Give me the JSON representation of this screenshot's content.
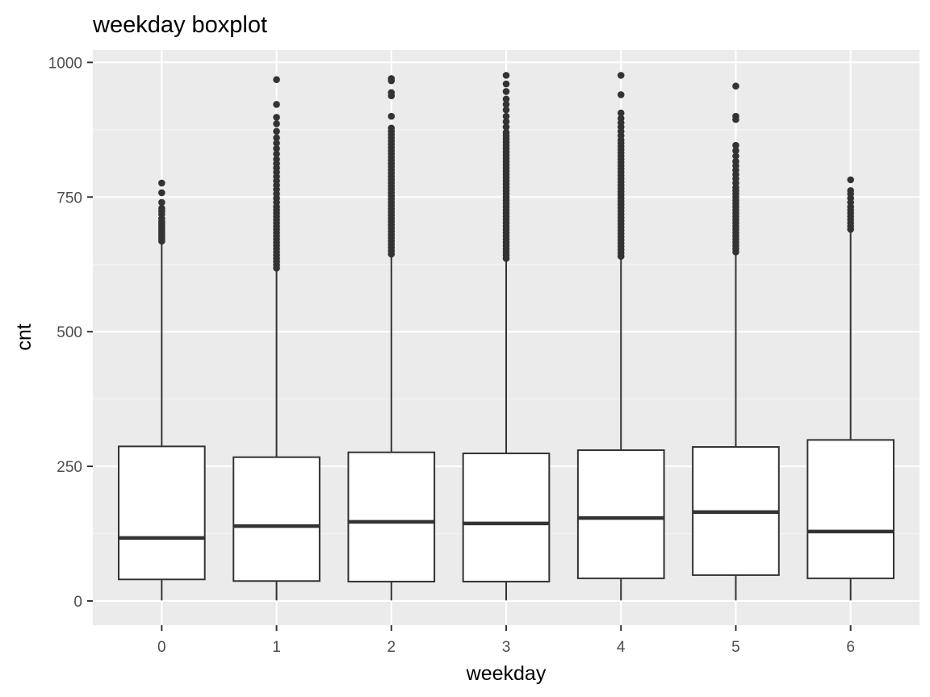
{
  "chart_data": {
    "type": "boxplot",
    "title": "weekday boxplot",
    "xlabel": "weekday",
    "ylabel": "cnt",
    "categories": [
      "0",
      "1",
      "2",
      "3",
      "4",
      "5",
      "6"
    ],
    "ylim": [
      -45,
      1023
    ],
    "yticks": [
      0,
      250,
      500,
      750,
      1000
    ],
    "ytick_labels": [
      "0",
      "250",
      "500",
      "750",
      "1000"
    ],
    "grid": true,
    "legend": "none",
    "colors": {
      "panel": "#ebebeb",
      "grid_major": "#ffffff",
      "grid_minor": "#f5f5f5",
      "box_fill": "#ffffff",
      "box_line": "#333333",
      "outlier": "#333333",
      "tick_text": "#4d4d4d"
    },
    "boxes": [
      {
        "category": "0",
        "min": 1,
        "q1": 40,
        "median": 117,
        "q3": 287,
        "max": 665,
        "outliers": [
          668,
          672,
          676,
          680,
          684,
          688,
          692,
          696,
          700,
          704,
          710,
          718,
          724,
          729,
          740,
          758,
          776
        ]
      },
      {
        "category": "1",
        "min": 1,
        "q1": 37,
        "median": 139,
        "q3": 267,
        "max": 615,
        "outliers": [
          618,
          624,
          630,
          636,
          642,
          648,
          654,
          660,
          666,
          672,
          678,
          684,
          690,
          696,
          702,
          708,
          714,
          720,
          726,
          732,
          740,
          748,
          756,
          764,
          772,
          780,
          788,
          796,
          804,
          812,
          820,
          830,
          840,
          850,
          860,
          872,
          886,
          898,
          922,
          968
        ]
      },
      {
        "category": "2",
        "min": 1,
        "q1": 36,
        "median": 147,
        "q3": 276,
        "max": 640,
        "outliers": [
          644,
          650,
          656,
          662,
          668,
          674,
          680,
          686,
          692,
          698,
          704,
          710,
          716,
          722,
          728,
          734,
          740,
          746,
          752,
          758,
          764,
          770,
          776,
          782,
          788,
          794,
          800,
          806,
          812,
          818,
          824,
          830,
          836,
          842,
          848,
          854,
          860,
          866,
          872,
          878,
          900,
          938,
          944,
          966,
          970
        ]
      },
      {
        "category": "3",
        "min": 1,
        "q1": 36,
        "median": 144,
        "q3": 274,
        "max": 632,
        "outliers": [
          636,
          642,
          648,
          654,
          660,
          666,
          672,
          678,
          684,
          690,
          696,
          702,
          708,
          714,
          720,
          726,
          732,
          738,
          744,
          750,
          756,
          762,
          768,
          774,
          780,
          786,
          792,
          798,
          804,
          810,
          816,
          822,
          828,
          834,
          840,
          846,
          852,
          858,
          864,
          870,
          880,
          890,
          900,
          912,
          922,
          932,
          946,
          960,
          976
        ]
      },
      {
        "category": "4",
        "min": 1,
        "q1": 42,
        "median": 154,
        "q3": 280,
        "max": 636,
        "outliers": [
          640,
          646,
          652,
          658,
          664,
          670,
          676,
          682,
          688,
          694,
          700,
          706,
          712,
          718,
          724,
          730,
          736,
          742,
          748,
          754,
          760,
          766,
          772,
          778,
          784,
          790,
          796,
          802,
          808,
          814,
          820,
          826,
          832,
          838,
          844,
          850,
          856,
          864,
          872,
          880,
          888,
          896,
          906,
          940,
          976
        ]
      },
      {
        "category": "5",
        "min": 1,
        "q1": 48,
        "median": 165,
        "q3": 286,
        "max": 645,
        "outliers": [
          648,
          654,
          660,
          666,
          672,
          678,
          684,
          690,
          696,
          702,
          708,
          714,
          720,
          726,
          732,
          738,
          744,
          750,
          756,
          762,
          768,
          776,
          784,
          792,
          800,
          808,
          816,
          826,
          836,
          846,
          894,
          900,
          956
        ]
      },
      {
        "category": "6",
        "min": 1,
        "q1": 42,
        "median": 129,
        "q3": 299,
        "max": 686,
        "outliers": [
          690,
          696,
          702,
          708,
          714,
          720,
          726,
          732,
          740,
          748,
          756,
          762,
          782
        ]
      }
    ]
  }
}
